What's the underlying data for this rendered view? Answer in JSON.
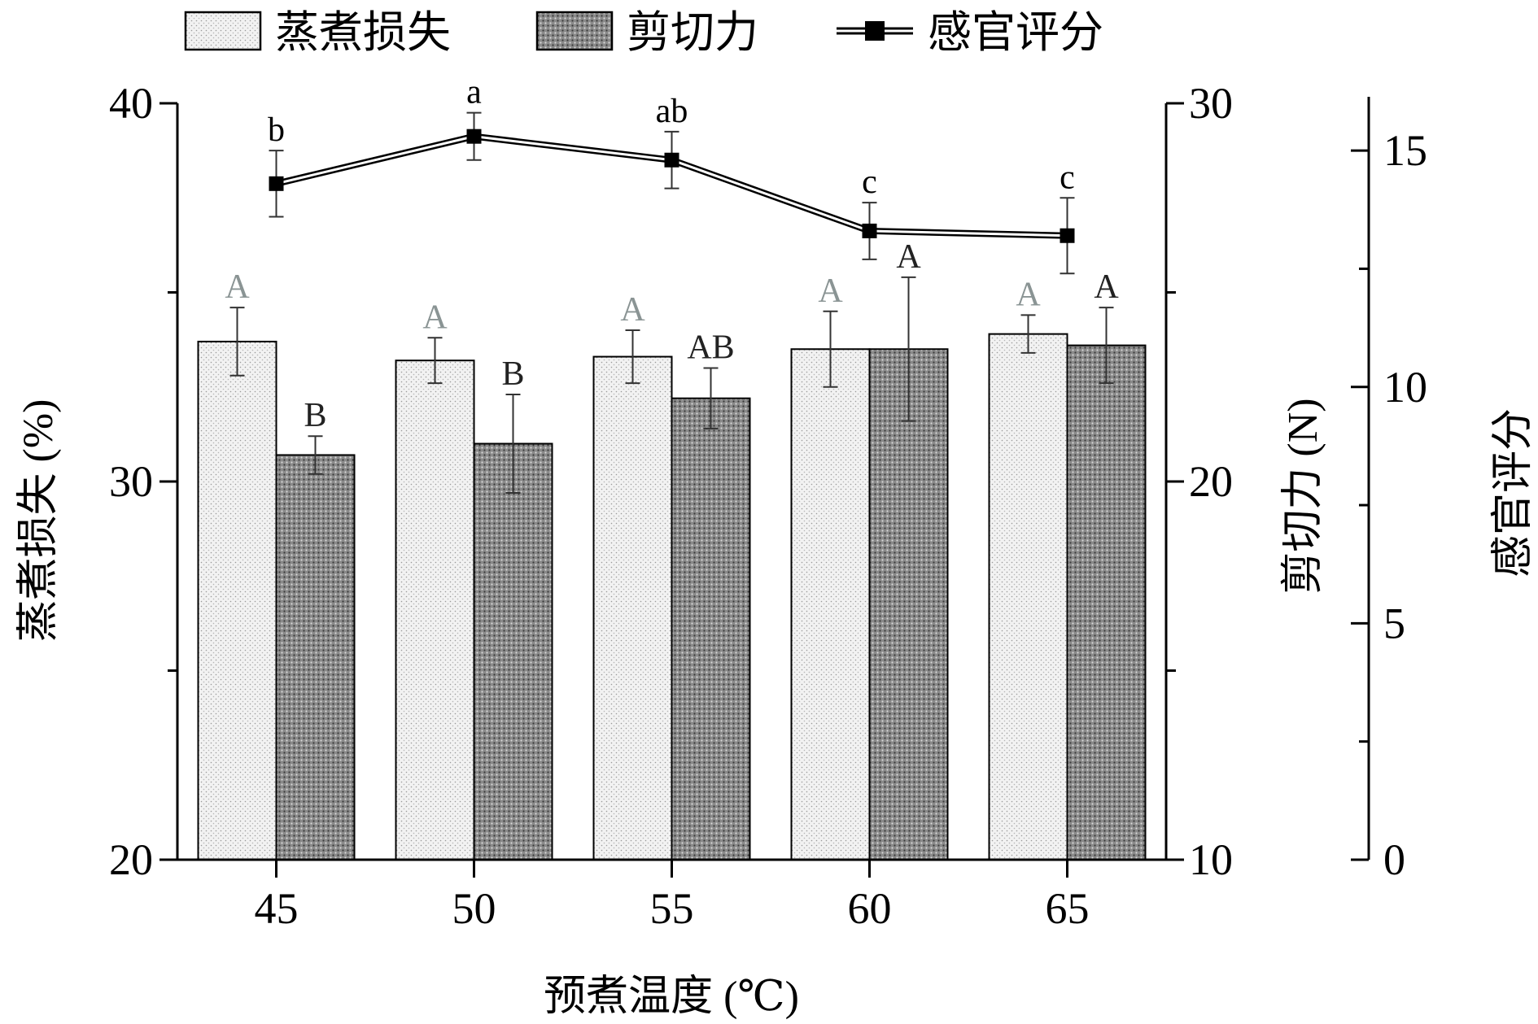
{
  "chart_data": {
    "type": "bar",
    "categories": [
      "45",
      "50",
      "55",
      "60",
      "65"
    ],
    "xlabel": "预煮温度 (℃)",
    "legend": [
      "蒸煮损失",
      "剪切力",
      "感官评分"
    ],
    "legend_position": "top",
    "grid": false,
    "axes": {
      "left": {
        "label": "蒸煮损失 (%)",
        "range": [
          20,
          40
        ],
        "ticks": [
          "20",
          "30",
          "40"
        ]
      },
      "right": {
        "label": "剪切力 (N)",
        "range": [
          10,
          30
        ],
        "ticks": [
          "10",
          "20",
          "30"
        ]
      },
      "right2": {
        "label": "感官评分",
        "range": [
          0,
          16
        ],
        "ticks": [
          "0",
          "5",
          "10",
          "15"
        ]
      }
    },
    "series": [
      {
        "name": "蒸煮损失",
        "kind": "bar",
        "axis": "left",
        "values": [
          33.7,
          33.2,
          33.3,
          33.5,
          33.9
        ],
        "errors": [
          0.9,
          0.6,
          0.7,
          1.0,
          0.5
        ],
        "labels": [
          "A",
          "A",
          "A",
          "A",
          "A"
        ]
      },
      {
        "name": "剪切力",
        "kind": "bar",
        "axis": "right",
        "values": [
          20.7,
          21.0,
          22.2,
          23.5,
          23.6
        ],
        "errors": [
          0.5,
          1.3,
          0.8,
          1.9,
          1.0
        ],
        "labels": [
          "B",
          "B",
          "AB",
          "A",
          "A"
        ]
      },
      {
        "name": "感官评分",
        "kind": "line",
        "axis": "right2",
        "values": [
          14.3,
          15.3,
          14.8,
          13.3,
          13.2
        ],
        "errors": [
          0.7,
          0.5,
          0.6,
          0.6,
          0.8
        ],
        "labels": [
          "b",
          "a",
          "ab",
          "c",
          "c"
        ]
      }
    ]
  }
}
